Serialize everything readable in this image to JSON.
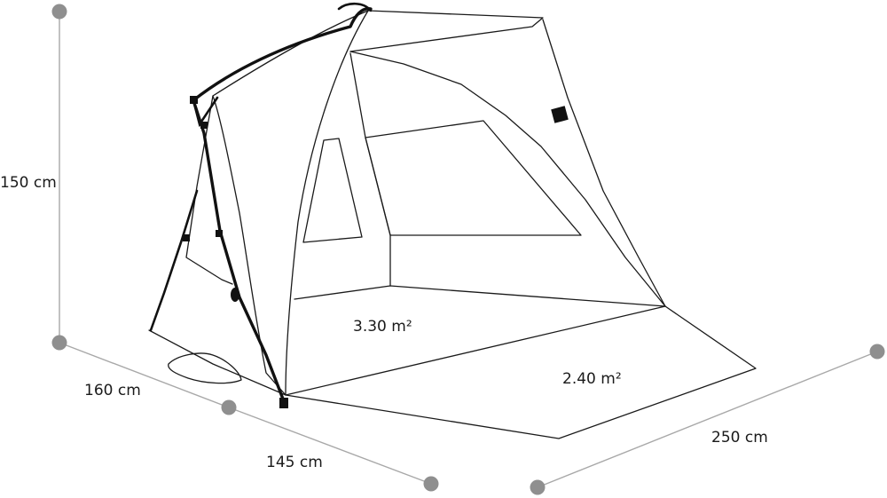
{
  "dimensions": {
    "height": "150 cm",
    "depth": "160 cm",
    "width_front": "145 cm",
    "length": "250 cm"
  },
  "areas": {
    "inner_floor": "3.30 m²",
    "extended_floor": "2.40 m²"
  },
  "colors": {
    "line": "#1a1a1a",
    "dimension_line": "#a8a8a8",
    "dimension_dot": "#8f8f8f"
  }
}
